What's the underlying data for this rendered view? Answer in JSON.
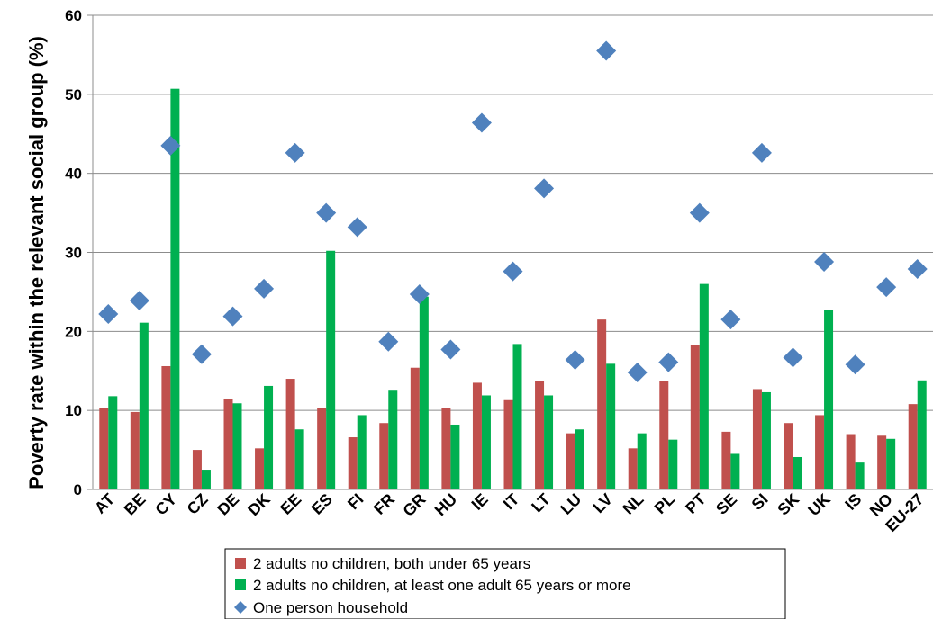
{
  "chart_data": {
    "type": "bar",
    "ylabel": "Poverty rate within the relevant social group (%)",
    "ylim": [
      0,
      60
    ],
    "yticks": [
      0,
      10,
      20,
      30,
      40,
      50,
      60
    ],
    "grid": true,
    "legend_position": "bottom",
    "categories": [
      "AT",
      "BE",
      "CY",
      "CZ",
      "DE",
      "DK",
      "EE",
      "ES",
      "FI",
      "FR",
      "GR",
      "HU",
      "IE",
      "IT",
      "LT",
      "LU",
      "LV",
      "NL",
      "PL",
      "PT",
      "SE",
      "SI",
      "SK",
      "UK",
      "IS",
      "NO",
      "EU-27"
    ],
    "series": [
      {
        "name": "2 adults no children, both under 65 years",
        "kind": "bar",
        "color": "#c0504d",
        "values": [
          10.3,
          9.8,
          15.6,
          5.0,
          11.5,
          5.2,
          14.0,
          10.3,
          6.6,
          8.4,
          15.4,
          10.3,
          13.5,
          11.3,
          13.7,
          7.1,
          21.5,
          5.2,
          13.7,
          18.3,
          7.3,
          12.7,
          8.4,
          9.4,
          7.0,
          6.8,
          10.8
        ]
      },
      {
        "name": "2 adults no children, at least one adult 65 years or more",
        "kind": "bar",
        "color": "#00b050",
        "values": [
          11.8,
          21.1,
          50.7,
          2.5,
          10.9,
          13.1,
          7.6,
          30.2,
          9.4,
          12.5,
          24.4,
          8.2,
          11.9,
          18.4,
          11.9,
          7.6,
          15.9,
          7.1,
          6.3,
          26.0,
          4.5,
          12.3,
          4.1,
          22.7,
          3.4,
          6.4,
          13.8
        ]
      },
      {
        "name": "One person household",
        "kind": "marker",
        "color": "#4f81bd",
        "values": [
          22.2,
          23.9,
          43.5,
          17.1,
          21.9,
          25.4,
          42.6,
          35.0,
          33.2,
          18.7,
          24.7,
          17.7,
          46.4,
          27.6,
          38.1,
          16.4,
          55.5,
          14.8,
          16.1,
          35.0,
          21.5,
          42.6,
          16.7,
          28.8,
          15.8,
          25.6,
          27.9
        ]
      }
    ]
  }
}
